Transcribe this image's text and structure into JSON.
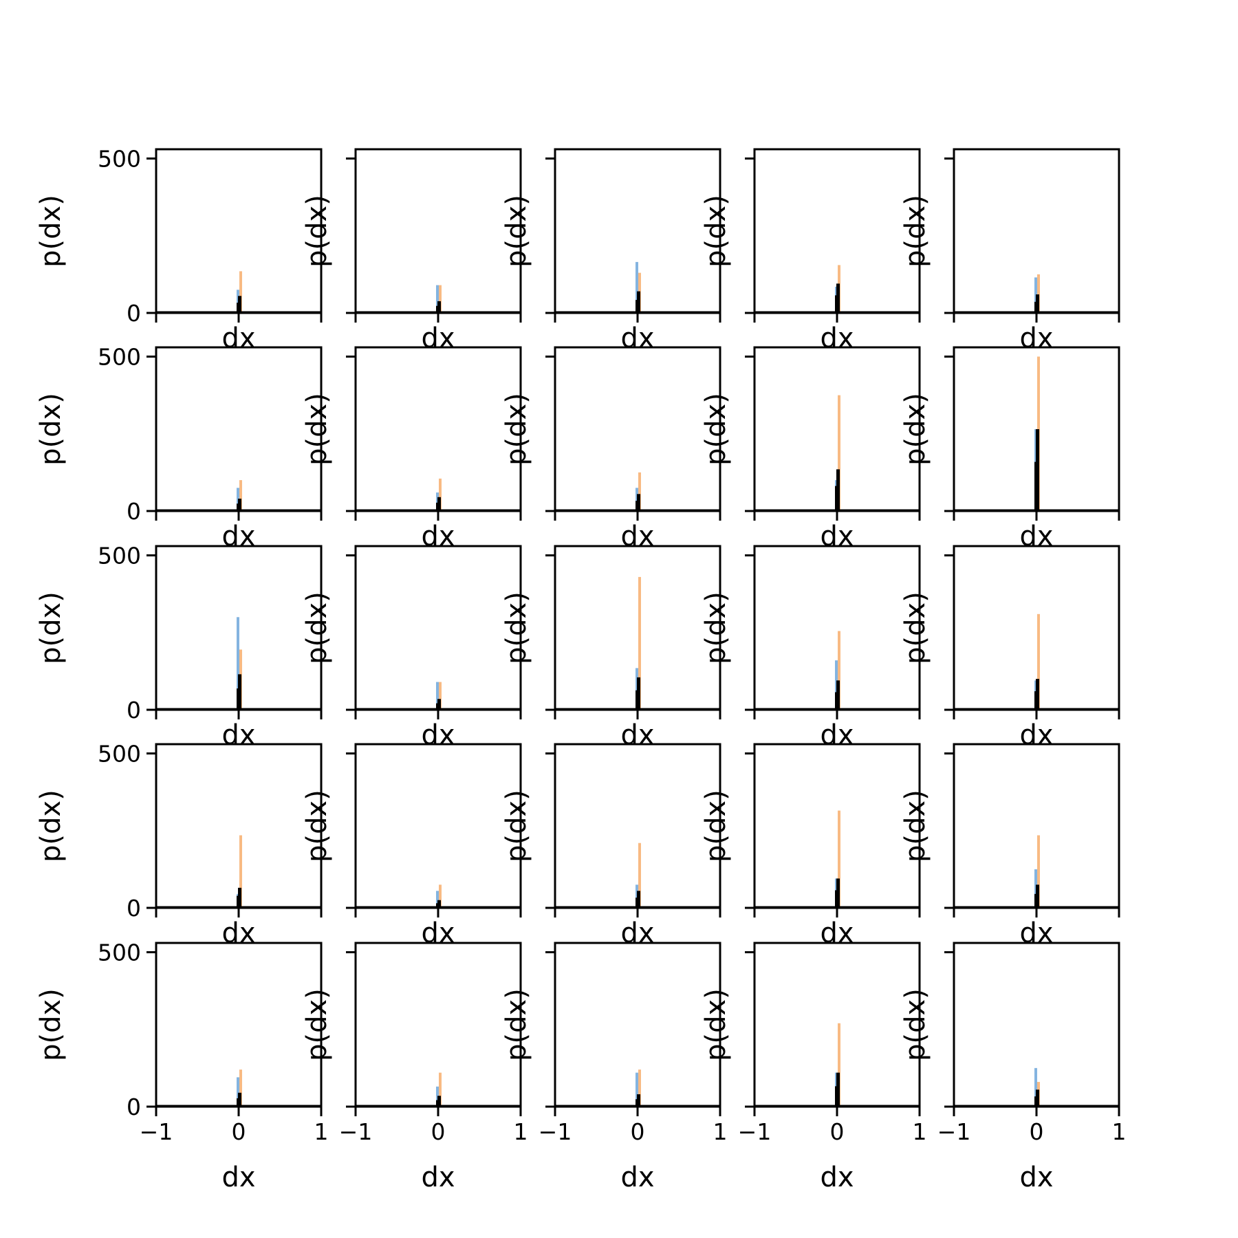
{
  "chart_data": {
    "type": "bar",
    "layout": {
      "rows": 5,
      "cols": 5
    },
    "colors": {
      "series_blue": "#5b9bd5",
      "series_orange": "#f5a35a",
      "series_black": "#000000",
      "axes": "#000000"
    },
    "shared": {
      "xlabel": "dx",
      "ylabel": "p(dx)",
      "xlim": [
        -1,
        1
      ],
      "ylim": [
        0,
        530
      ],
      "x_ticks": [
        {
          "value": -1,
          "label": "−1"
        },
        {
          "value": 0,
          "label": "0"
        },
        {
          "value": 1,
          "label": "1"
        }
      ],
      "y_ticks": [
        {
          "value": 0,
          "label": "0"
        },
        {
          "value": 500,
          "label": "500"
        }
      ]
    },
    "panels": [
      {
        "blue": 75,
        "orange": 135,
        "black": 55
      },
      {
        "blue": 90,
        "orange": 90,
        "black": 38
      },
      {
        "blue": 165,
        "orange": 130,
        "black": 70
      },
      {
        "blue": 85,
        "orange": 155,
        "black": 95
      },
      {
        "blue": 115,
        "orange": 125,
        "black": 60
      },
      {
        "blue": 75,
        "orange": 100,
        "black": 40
      },
      {
        "blue": 60,
        "orange": 105,
        "black": 45
      },
      {
        "blue": 75,
        "orange": 125,
        "black": 55
      },
      {
        "blue": 100,
        "orange": 375,
        "black": 135
      },
      {
        "blue": 265,
        "orange": 500,
        "black": 265
      },
      {
        "blue": 300,
        "orange": 195,
        "black": 115
      },
      {
        "blue": 90,
        "orange": 90,
        "black": 35
      },
      {
        "blue": 135,
        "orange": 430,
        "black": 105
      },
      {
        "blue": 160,
        "orange": 255,
        "black": 95
      },
      {
        "blue": 95,
        "orange": 310,
        "black": 100
      },
      {
        "blue": 45,
        "orange": 235,
        "black": 65
      },
      {
        "blue": 55,
        "orange": 75,
        "black": 25
      },
      {
        "blue": 75,
        "orange": 210,
        "black": 55
      },
      {
        "blue": 95,
        "orange": 315,
        "black": 95
      },
      {
        "blue": 125,
        "orange": 235,
        "black": 75
      },
      {
        "blue": 95,
        "orange": 120,
        "black": 45
      },
      {
        "blue": 65,
        "orange": 110,
        "black": 35
      },
      {
        "blue": 110,
        "orange": 120,
        "black": 40
      },
      {
        "blue": 110,
        "orange": 270,
        "black": 110
      },
      {
        "blue": 125,
        "orange": 80,
        "black": 55
      }
    ]
  }
}
